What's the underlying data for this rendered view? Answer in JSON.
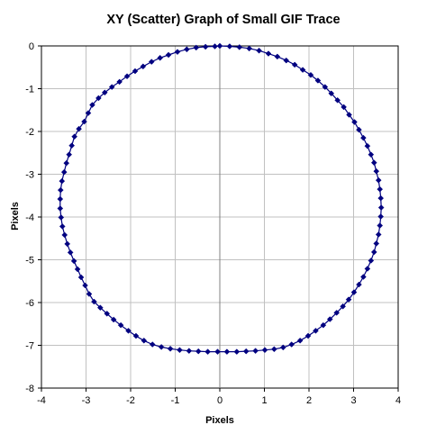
{
  "chart_data": {
    "type": "scatter",
    "title": "XY (Scatter) Graph of Small GIF Trace",
    "xlabel": "Pixels",
    "ylabel": "Pixels",
    "xlim": [
      -4,
      4
    ],
    "ylim": [
      -8,
      0
    ],
    "xticks": [
      -4,
      -3,
      -2,
      -1,
      0,
      1,
      2,
      3,
      4
    ],
    "yticks": [
      0,
      -1,
      -2,
      -3,
      -4,
      -5,
      -6,
      -7,
      -8
    ],
    "grid": true,
    "legend": "none",
    "marker": "diamond",
    "series": [
      {
        "color": "#000080",
        "points": [
          [
            0.0,
            0.0
          ],
          [
            0.22,
            -0.01
          ],
          [
            0.44,
            -0.03
          ],
          [
            0.66,
            -0.06
          ],
          [
            0.88,
            -0.11
          ],
          [
            1.09,
            -0.18
          ],
          [
            1.29,
            -0.25
          ],
          [
            1.49,
            -0.34
          ],
          [
            1.68,
            -0.44
          ],
          [
            1.86,
            -0.56
          ],
          [
            2.04,
            -0.68
          ],
          [
            2.2,
            -0.81
          ],
          [
            2.36,
            -0.96
          ],
          [
            2.5,
            -1.11
          ],
          [
            2.64,
            -1.27
          ],
          [
            2.78,
            -1.43
          ],
          [
            2.9,
            -1.61
          ],
          [
            3.02,
            -1.78
          ],
          [
            3.12,
            -1.96
          ],
          [
            3.22,
            -2.15
          ],
          [
            3.31,
            -2.34
          ],
          [
            3.39,
            -2.54
          ],
          [
            3.46,
            -2.73
          ],
          [
            3.51,
            -2.93
          ],
          [
            3.56,
            -3.14
          ],
          [
            3.59,
            -3.35
          ],
          [
            3.61,
            -3.56
          ],
          [
            3.62,
            -3.78
          ],
          [
            3.61,
            -3.99
          ],
          [
            3.59,
            -4.2
          ],
          [
            3.56,
            -4.41
          ],
          [
            3.51,
            -4.62
          ],
          [
            3.46,
            -4.82
          ],
          [
            3.39,
            -5.02
          ],
          [
            3.31,
            -5.21
          ],
          [
            3.22,
            -5.4
          ],
          [
            3.12,
            -5.58
          ],
          [
            3.01,
            -5.76
          ],
          [
            2.89,
            -5.93
          ],
          [
            2.76,
            -6.09
          ],
          [
            2.62,
            -6.24
          ],
          [
            2.47,
            -6.39
          ],
          [
            2.32,
            -6.53
          ],
          [
            2.15,
            -6.66
          ],
          [
            1.98,
            -6.78
          ],
          [
            1.8,
            -6.89
          ],
          [
            1.61,
            -6.98
          ],
          [
            1.42,
            -7.05
          ],
          [
            1.22,
            -7.09
          ],
          [
            1.01,
            -7.11
          ],
          [
            0.8,
            -7.13
          ],
          [
            0.59,
            -7.14
          ],
          [
            0.38,
            -7.15
          ],
          [
            0.16,
            -7.15
          ],
          [
            -0.05,
            -7.15
          ],
          [
            -0.27,
            -7.15
          ],
          [
            -0.48,
            -7.14
          ],
          [
            -0.69,
            -7.13
          ],
          [
            -0.9,
            -7.11
          ],
          [
            -1.11,
            -7.08
          ],
          [
            -1.31,
            -7.04
          ],
          [
            -1.51,
            -6.98
          ],
          [
            -1.7,
            -6.89
          ],
          [
            -1.88,
            -6.78
          ],
          [
            -2.05,
            -6.66
          ],
          [
            -2.22,
            -6.53
          ],
          [
            -2.38,
            -6.4
          ],
          [
            -2.53,
            -6.26
          ],
          [
            -2.68,
            -6.12
          ],
          [
            -2.82,
            -5.98
          ],
          [
            -2.93,
            -5.8
          ],
          [
            -3.02,
            -5.6
          ],
          [
            -3.11,
            -5.41
          ],
          [
            -3.19,
            -5.22
          ],
          [
            -3.27,
            -5.03
          ],
          [
            -3.35,
            -4.83
          ],
          [
            -3.42,
            -4.63
          ],
          [
            -3.48,
            -4.42
          ],
          [
            -3.53,
            -4.22
          ],
          [
            -3.56,
            -4.01
          ],
          [
            -3.58,
            -3.8
          ],
          [
            -3.58,
            -3.58
          ],
          [
            -3.57,
            -3.37
          ],
          [
            -3.54,
            -3.16
          ],
          [
            -3.49,
            -2.95
          ],
          [
            -3.44,
            -2.74
          ],
          [
            -3.38,
            -2.54
          ],
          [
            -3.32,
            -2.33
          ],
          [
            -3.26,
            -2.12
          ],
          [
            -3.16,
            -1.94
          ],
          [
            -3.04,
            -1.77
          ],
          [
            -2.95,
            -1.57
          ],
          [
            -2.86,
            -1.38
          ],
          [
            -2.72,
            -1.22
          ],
          [
            -2.58,
            -1.09
          ],
          [
            -2.42,
            -0.96
          ],
          [
            -2.25,
            -0.84
          ],
          [
            -2.08,
            -0.71
          ],
          [
            -1.9,
            -0.59
          ],
          [
            -1.72,
            -0.48
          ],
          [
            -1.53,
            -0.37
          ],
          [
            -1.34,
            -0.28
          ],
          [
            -1.15,
            -0.21
          ],
          [
            -0.95,
            -0.14
          ],
          [
            -0.74,
            -0.08
          ],
          [
            -0.53,
            -0.04
          ],
          [
            -0.32,
            -0.02
          ],
          [
            -0.11,
            -0.01
          ]
        ]
      }
    ]
  }
}
